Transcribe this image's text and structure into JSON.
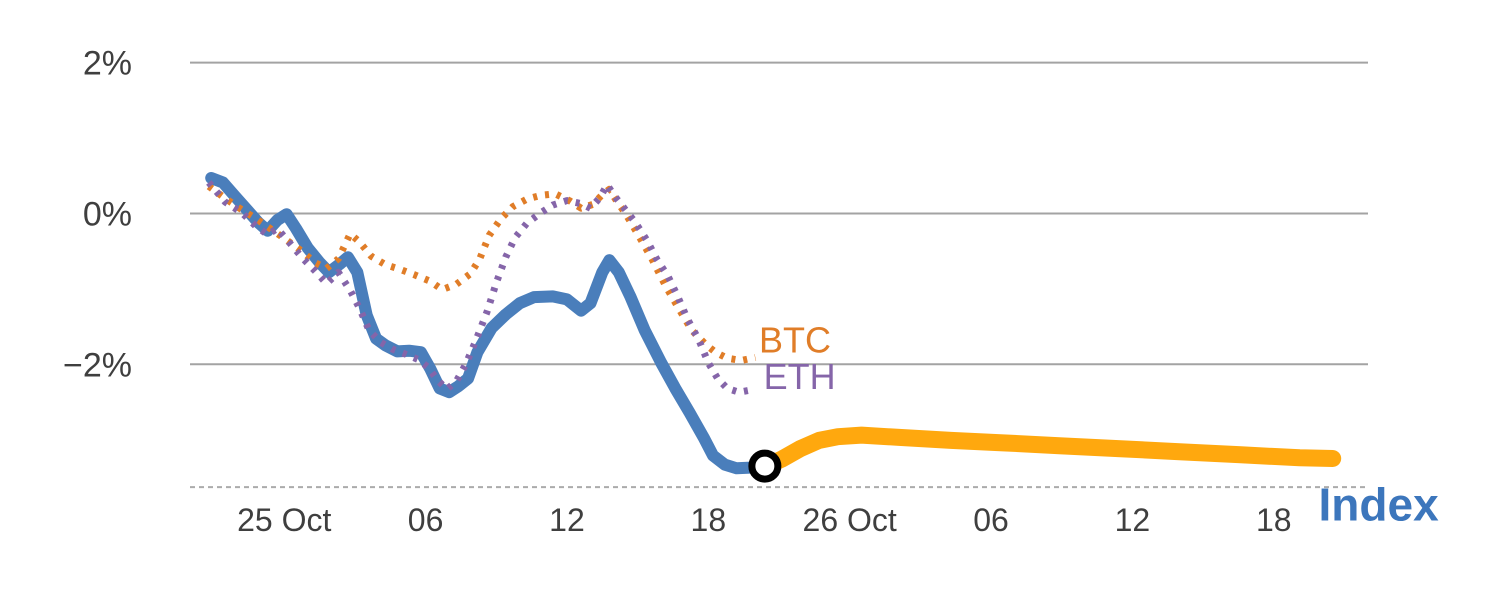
{
  "page": {
    "background": "#ffffff"
  },
  "chart_data": {
    "type": "line",
    "title": "",
    "xlabel": "",
    "ylabel": "",
    "grid_color": "#a3a3a3",
    "tick_label_color": "#3f3f3f",
    "x_axis": {
      "lim": [
        20,
        70
      ],
      "unit": "hours (intraday, 25-26 Oct)",
      "ticks": [
        {
          "v": 24,
          "label": "25 Oct"
        },
        {
          "v": 30,
          "label": "06"
        },
        {
          "v": 36,
          "label": "12"
        },
        {
          "v": 42,
          "label": "18"
        },
        {
          "v": 48,
          "label": "26 Oct"
        },
        {
          "v": 54,
          "label": "06"
        },
        {
          "v": 60,
          "label": "12"
        },
        {
          "v": 66,
          "label": "18"
        }
      ]
    },
    "y_axis": {
      "lim": [
        -3.8,
        2.3
      ],
      "unit": "percent change",
      "ticks": [
        {
          "v": 2,
          "label": "2%"
        },
        {
          "v": 0,
          "label": "0%"
        },
        {
          "v": -2,
          "label": "−2%"
        }
      ]
    },
    "baseline": {
      "v": -3.63,
      "style": "dashed",
      "color": "#ababab"
    },
    "series": [
      {
        "name": "index-history",
        "color": "#4a7ebb",
        "width": 12,
        "dash": "",
        "points": [
          [
            20.9,
            0.47
          ],
          [
            21.4,
            0.41
          ],
          [
            21.9,
            0.23
          ],
          [
            22.5,
            0.02
          ],
          [
            22.9,
            -0.12
          ],
          [
            23.3,
            -0.23
          ],
          [
            23.7,
            -0.09
          ],
          [
            24.1,
            -0.01
          ],
          [
            24.5,
            -0.2
          ],
          [
            25.0,
            -0.46
          ],
          [
            25.5,
            -0.65
          ],
          [
            25.9,
            -0.78
          ],
          [
            26.4,
            -0.66
          ],
          [
            26.7,
            -0.58
          ],
          [
            27.1,
            -0.78
          ],
          [
            27.5,
            -1.35
          ],
          [
            27.9,
            -1.66
          ],
          [
            28.3,
            -1.75
          ],
          [
            28.8,
            -1.83
          ],
          [
            29.3,
            -1.82
          ],
          [
            29.8,
            -1.84
          ],
          [
            30.2,
            -2.06
          ],
          [
            30.6,
            -2.32
          ],
          [
            31.0,
            -2.37
          ],
          [
            31.4,
            -2.29
          ],
          [
            31.8,
            -2.19
          ],
          [
            32.2,
            -1.84
          ],
          [
            32.8,
            -1.52
          ],
          [
            33.4,
            -1.34
          ],
          [
            34.0,
            -1.19
          ],
          [
            34.6,
            -1.11
          ],
          [
            35.4,
            -1.1
          ],
          [
            36.0,
            -1.14
          ],
          [
            36.6,
            -1.29
          ],
          [
            37.0,
            -1.19
          ],
          [
            37.5,
            -0.78
          ],
          [
            37.8,
            -0.62
          ],
          [
            38.2,
            -0.78
          ],
          [
            38.7,
            -1.11
          ],
          [
            39.3,
            -1.55
          ],
          [
            40.0,
            -1.98
          ],
          [
            40.6,
            -2.32
          ],
          [
            41.2,
            -2.64
          ],
          [
            41.8,
            -2.97
          ],
          [
            42.2,
            -3.21
          ],
          [
            42.7,
            -3.33
          ],
          [
            43.2,
            -3.38
          ],
          [
            43.8,
            -3.37
          ],
          [
            44.4,
            -3.36
          ]
        ]
      },
      {
        "name": "index-continuation",
        "color": "#ffa80e",
        "width": 17,
        "dash": "",
        "points": [
          [
            44.4,
            -3.36
          ],
          [
            45.1,
            -3.26
          ],
          [
            45.9,
            -3.12
          ],
          [
            46.7,
            -3.01
          ],
          [
            47.5,
            -2.96
          ],
          [
            48.5,
            -2.94
          ],
          [
            50.1,
            -2.97
          ],
          [
            52.3,
            -3.01
          ],
          [
            54.4,
            -3.04
          ],
          [
            56.9,
            -3.08
          ],
          [
            59.5,
            -3.12
          ],
          [
            62.0,
            -3.16
          ],
          [
            64.6,
            -3.2
          ],
          [
            67.1,
            -3.24
          ],
          [
            68.5,
            -3.25
          ]
        ]
      },
      {
        "name": "btc",
        "color": "#e07d28",
        "width": 7,
        "dash": "4 8",
        "points": [
          [
            20.8,
            0.36
          ],
          [
            21.5,
            0.2
          ],
          [
            22.1,
            0.07
          ],
          [
            22.8,
            -0.07
          ],
          [
            23.4,
            -0.2
          ],
          [
            24.0,
            -0.33
          ],
          [
            24.7,
            -0.49
          ],
          [
            25.3,
            -0.65
          ],
          [
            25.8,
            -0.73
          ],
          [
            26.3,
            -0.6
          ],
          [
            26.8,
            -0.27
          ],
          [
            27.2,
            -0.38
          ],
          [
            27.7,
            -0.57
          ],
          [
            28.3,
            -0.68
          ],
          [
            28.9,
            -0.74
          ],
          [
            29.5,
            -0.81
          ],
          [
            30.2,
            -0.9
          ],
          [
            30.7,
            -1.01
          ],
          [
            31.3,
            -0.94
          ],
          [
            31.9,
            -0.8
          ],
          [
            32.3,
            -0.6
          ],
          [
            32.7,
            -0.29
          ],
          [
            33.2,
            -0.07
          ],
          [
            33.7,
            0.09
          ],
          [
            34.3,
            0.19
          ],
          [
            34.9,
            0.24
          ],
          [
            35.5,
            0.26
          ],
          [
            36.1,
            0.17
          ],
          [
            36.6,
            0.07
          ],
          [
            37.1,
            0.12
          ],
          [
            37.5,
            0.25
          ],
          [
            37.8,
            0.32
          ],
          [
            38.1,
            0.17
          ],
          [
            38.5,
            -0.01
          ],
          [
            39.0,
            -0.27
          ],
          [
            39.6,
            -0.6
          ],
          [
            40.2,
            -0.97
          ],
          [
            40.8,
            -1.29
          ],
          [
            41.3,
            -1.55
          ],
          [
            41.9,
            -1.74
          ],
          [
            42.3,
            -1.84
          ],
          [
            42.8,
            -1.92
          ],
          [
            43.4,
            -1.95
          ],
          [
            44.0,
            -1.91
          ]
        ]
      },
      {
        "name": "eth",
        "color": "#8565a9",
        "width": 7,
        "dash": "4 8",
        "points": [
          [
            20.8,
            0.41
          ],
          [
            21.5,
            0.15
          ],
          [
            22.2,
            0.01
          ],
          [
            22.8,
            -0.17
          ],
          [
            23.3,
            -0.28
          ],
          [
            23.7,
            -0.2
          ],
          [
            24.2,
            -0.38
          ],
          [
            24.8,
            -0.6
          ],
          [
            25.3,
            -0.76
          ],
          [
            25.8,
            -0.93
          ],
          [
            26.3,
            -0.78
          ],
          [
            26.8,
            -1.02
          ],
          [
            27.2,
            -1.26
          ],
          [
            27.6,
            -1.55
          ],
          [
            28.1,
            -1.71
          ],
          [
            28.6,
            -1.8
          ],
          [
            29.1,
            -1.86
          ],
          [
            29.7,
            -1.94
          ],
          [
            30.1,
            -2.04
          ],
          [
            30.5,
            -2.21
          ],
          [
            30.9,
            -2.33
          ],
          [
            31.3,
            -2.23
          ],
          [
            31.7,
            -2.0
          ],
          [
            32.1,
            -1.71
          ],
          [
            32.6,
            -1.31
          ],
          [
            33.0,
            -0.92
          ],
          [
            33.4,
            -0.58
          ],
          [
            33.8,
            -0.32
          ],
          [
            34.3,
            -0.13
          ],
          [
            34.9,
            0.01
          ],
          [
            35.4,
            0.11
          ],
          [
            36.0,
            0.17
          ],
          [
            36.6,
            0.13
          ],
          [
            37.0,
            0.07
          ],
          [
            37.4,
            0.21
          ],
          [
            37.7,
            0.38
          ],
          [
            38.1,
            0.2
          ],
          [
            38.5,
            0.04
          ],
          [
            38.9,
            -0.12
          ],
          [
            39.4,
            -0.36
          ],
          [
            39.8,
            -0.6
          ],
          [
            40.3,
            -0.84
          ],
          [
            40.7,
            -1.1
          ],
          [
            41.1,
            -1.39
          ],
          [
            41.6,
            -1.68
          ],
          [
            42.0,
            -1.98
          ],
          [
            42.4,
            -2.19
          ],
          [
            42.8,
            -2.32
          ],
          [
            43.3,
            -2.37
          ],
          [
            44.0,
            -2.33
          ]
        ]
      }
    ],
    "annotations": [
      {
        "id": "btc-series-label",
        "text": "BTC",
        "x": 44.15,
        "y": -1.72,
        "color": "#e07d28",
        "size": 36,
        "bold": false
      },
      {
        "id": "eth-series-label",
        "text": "ETH",
        "x": 44.35,
        "y": -2.2,
        "color": "#8565a9",
        "size": 36,
        "bold": false
      },
      {
        "id": "index-series-label",
        "text": "Index",
        "x": 67.9,
        "y": -3.91,
        "color": "#3c76bc",
        "size": 46,
        "bold": true
      }
    ],
    "marker": {
      "x": 44.4,
      "y": -3.35,
      "r": 13,
      "stroke": "#000000",
      "stroke_width": 7,
      "fill": "#ffffff"
    }
  }
}
